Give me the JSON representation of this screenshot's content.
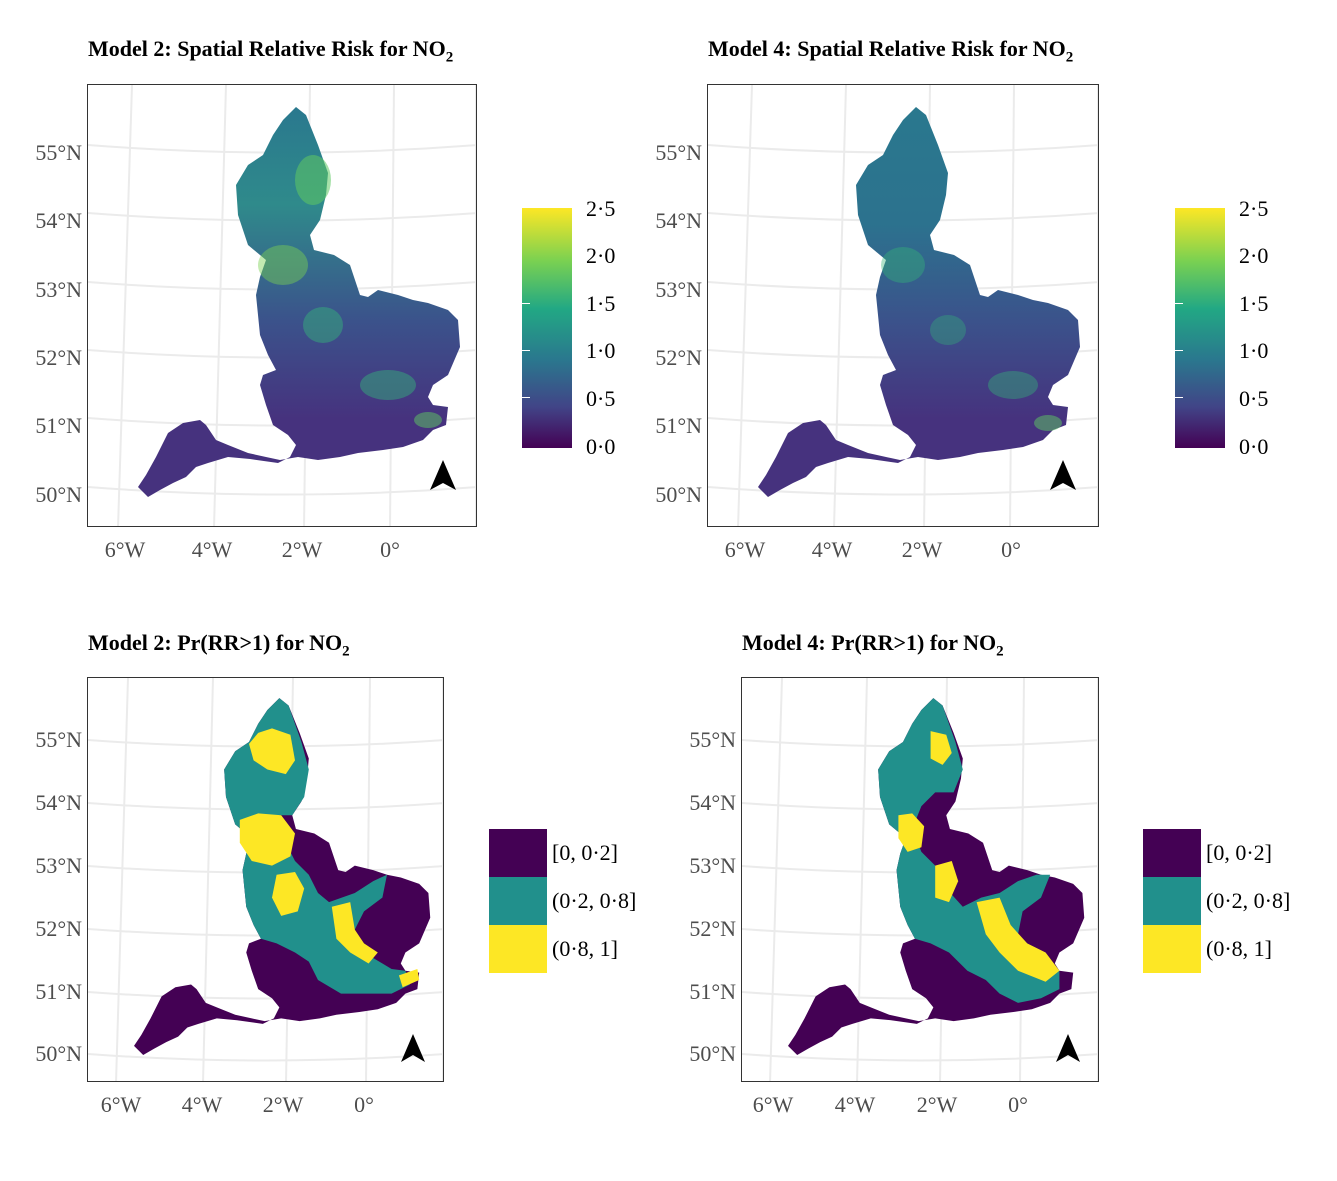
{
  "panels": [
    {
      "title_main": "Model 2: Spatial Relative Risk for NO",
      "title_sub": "2",
      "y_ticks": [
        "55°N",
        "54°N",
        "53°N",
        "52°N",
        "51°N",
        "50°N"
      ],
      "x_ticks": [
        "6°W",
        "4°W",
        "2°W",
        "0°"
      ],
      "legend": {
        "type": "continuous",
        "labels": [
          "2·5",
          "2·0",
          "1·5",
          "1·0",
          "0·5",
          "0·0"
        ]
      }
    },
    {
      "title_main": "Model 4: Spatial Relative Risk for NO",
      "title_sub": "2",
      "y_ticks": [
        "55°N",
        "54°N",
        "53°N",
        "52°N",
        "51°N",
        "50°N"
      ],
      "x_ticks": [
        "6°W",
        "4°W",
        "2°W",
        "0°"
      ],
      "legend": {
        "type": "continuous",
        "labels": [
          "2·5",
          "2·0",
          "1·5",
          "1·0",
          "0·5",
          "0·0"
        ]
      }
    },
    {
      "title_main": "Model 2: Pr(RR>1) for NO",
      "title_sub": "2",
      "y_ticks": [
        "55°N",
        "54°N",
        "53°N",
        "52°N",
        "51°N",
        "50°N"
      ],
      "x_ticks": [
        "6°W",
        "4°W",
        "2°W",
        "0°"
      ],
      "legend": {
        "type": "categorical",
        "labels": [
          "[0, 0·2]",
          "(0·2, 0·8]",
          "(0·8, 1]"
        ]
      }
    },
    {
      "title_main": "Model 4: Pr(RR>1) for NO",
      "title_sub": "2",
      "y_ticks": [
        "55°N",
        "54°N",
        "53°N",
        "52°N",
        "51°N",
        "50°N"
      ],
      "x_ticks": [
        "6°W",
        "4°W",
        "2°W",
        "0°"
      ],
      "legend": {
        "type": "categorical",
        "labels": [
          "[0, 0·2]",
          "(0·2, 0·8]",
          "(0·8, 1]"
        ]
      }
    }
  ],
  "colors": {
    "low": "#440154",
    "mid": "#21908c",
    "high": "#fde725",
    "grid": "#ebebeb",
    "frame": "#333333"
  },
  "icons": {
    "north_arrow": "north-arrow-icon"
  }
}
